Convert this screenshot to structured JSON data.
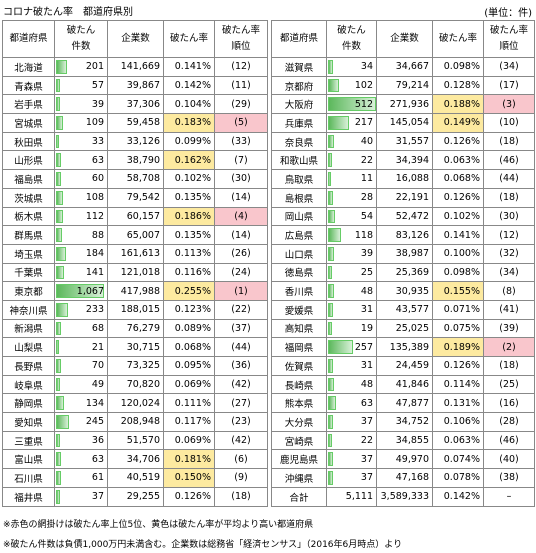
{
  "title": "コロナ破たん率　都道府県別",
  "unit": "(単位：件)",
  "headers": [
    "都道府県",
    "破たん\n件数",
    "企業数",
    "破たん率",
    "破たん率\n順位"
  ],
  "tables": [
    {
      "rows": [
        {
          "pref": "北海道",
          "count": "201",
          "companies": "141,669",
          "rate": "0.141%",
          "rank": "(12)"
        },
        {
          "pref": "青森県",
          "count": "57",
          "companies": "39,867",
          "rate": "0.142%",
          "rank": "(11)"
        },
        {
          "pref": "岩手県",
          "count": "39",
          "companies": "37,306",
          "rate": "0.104%",
          "rank": "(29)"
        },
        {
          "pref": "宮城県",
          "count": "109",
          "companies": "59,458",
          "rate": "0.183%",
          "rank": "(5)",
          "mark": "red"
        },
        {
          "pref": "秋田県",
          "count": "33",
          "companies": "33,126",
          "rate": "0.099%",
          "rank": "(33)"
        },
        {
          "pref": "山形県",
          "count": "63",
          "companies": "38,790",
          "rate": "0.162%",
          "rank": "(7)",
          "mark": "yellow"
        },
        {
          "pref": "福島県",
          "count": "60",
          "companies": "58,708",
          "rate": "0.102%",
          "rank": "(30)"
        },
        {
          "pref": "茨城県",
          "count": "108",
          "companies": "79,542",
          "rate": "0.135%",
          "rank": "(14)"
        },
        {
          "pref": "栃木県",
          "count": "112",
          "companies": "60,157",
          "rate": "0.186%",
          "rank": "(4)",
          "mark": "red"
        },
        {
          "pref": "群馬県",
          "count": "88",
          "companies": "65,007",
          "rate": "0.135%",
          "rank": "(14)"
        },
        {
          "pref": "埼玉県",
          "count": "184",
          "companies": "161,613",
          "rate": "0.113%",
          "rank": "(26)"
        },
        {
          "pref": "千葉県",
          "count": "141",
          "companies": "121,018",
          "rate": "0.116%",
          "rank": "(24)"
        },
        {
          "pref": "東京都",
          "count": "1,067",
          "companies": "417,988",
          "rate": "0.255%",
          "rank": "(1)",
          "mark": "red"
        },
        {
          "pref": "神奈川県",
          "count": "233",
          "companies": "188,015",
          "rate": "0.123%",
          "rank": "(22)"
        },
        {
          "pref": "新潟県",
          "count": "68",
          "companies": "76,279",
          "rate": "0.089%",
          "rank": "(37)"
        },
        {
          "pref": "山梨県",
          "count": "21",
          "companies": "30,715",
          "rate": "0.068%",
          "rank": "(44)"
        },
        {
          "pref": "長野県",
          "count": "70",
          "companies": "73,325",
          "rate": "0.095%",
          "rank": "(36)"
        },
        {
          "pref": "岐阜県",
          "count": "49",
          "companies": "70,820",
          "rate": "0.069%",
          "rank": "(42)"
        },
        {
          "pref": "静岡県",
          "count": "134",
          "companies": "120,024",
          "rate": "0.111%",
          "rank": "(27)"
        },
        {
          "pref": "愛知県",
          "count": "245",
          "companies": "208,948",
          "rate": "0.117%",
          "rank": "(23)"
        },
        {
          "pref": "三重県",
          "count": "36",
          "companies": "51,570",
          "rate": "0.069%",
          "rank": "(42)"
        },
        {
          "pref": "富山県",
          "count": "63",
          "companies": "34,706",
          "rate": "0.181%",
          "rank": "(6)",
          "mark": "yellow"
        },
        {
          "pref": "石川県",
          "count": "61",
          "companies": "40,519",
          "rate": "0.150%",
          "rank": "(9)",
          "mark": "yellow"
        },
        {
          "pref": "福井県",
          "count": "37",
          "companies": "29,255",
          "rate": "0.126%",
          "rank": "(18)"
        }
      ]
    },
    {
      "rows": [
        {
          "pref": "滋賀県",
          "count": "34",
          "companies": "34,667",
          "rate": "0.098%",
          "rank": "(34)"
        },
        {
          "pref": "京都府",
          "count": "102",
          "companies": "79,214",
          "rate": "0.128%",
          "rank": "(17)"
        },
        {
          "pref": "大阪府",
          "count": "512",
          "companies": "271,936",
          "rate": "0.188%",
          "rank": "(3)",
          "mark": "red"
        },
        {
          "pref": "兵庫県",
          "count": "217",
          "companies": "145,054",
          "rate": "0.149%",
          "rank": "(10)",
          "mark": "yellow"
        },
        {
          "pref": "奈良県",
          "count": "40",
          "companies": "31,557",
          "rate": "0.126%",
          "rank": "(18)"
        },
        {
          "pref": "和歌山県",
          "count": "22",
          "companies": "34,394",
          "rate": "0.063%",
          "rank": "(46)"
        },
        {
          "pref": "鳥取県",
          "count": "11",
          "companies": "16,088",
          "rate": "0.068%",
          "rank": "(44)"
        },
        {
          "pref": "島根県",
          "count": "28",
          "companies": "22,191",
          "rate": "0.126%",
          "rank": "(18)"
        },
        {
          "pref": "岡山県",
          "count": "54",
          "companies": "52,472",
          "rate": "0.102%",
          "rank": "(30)"
        },
        {
          "pref": "広島県",
          "count": "118",
          "companies": "83,126",
          "rate": "0.141%",
          "rank": "(12)"
        },
        {
          "pref": "山口県",
          "count": "39",
          "companies": "38,987",
          "rate": "0.100%",
          "rank": "(32)"
        },
        {
          "pref": "徳島県",
          "count": "25",
          "companies": "25,369",
          "rate": "0.098%",
          "rank": "(34)"
        },
        {
          "pref": "香川県",
          "count": "48",
          "companies": "30,935",
          "rate": "0.155%",
          "rank": "(8)",
          "mark": "yellow"
        },
        {
          "pref": "愛媛県",
          "count": "31",
          "companies": "43,577",
          "rate": "0.071%",
          "rank": "(41)"
        },
        {
          "pref": "高知県",
          "count": "19",
          "companies": "25,025",
          "rate": "0.075%",
          "rank": "(39)"
        },
        {
          "pref": "福岡県",
          "count": "257",
          "companies": "135,389",
          "rate": "0.189%",
          "rank": "(2)",
          "mark": "red"
        },
        {
          "pref": "佐賀県",
          "count": "31",
          "companies": "24,459",
          "rate": "0.126%",
          "rank": "(18)"
        },
        {
          "pref": "長崎県",
          "count": "48",
          "companies": "41,846",
          "rate": "0.114%",
          "rank": "(25)"
        },
        {
          "pref": "熊本県",
          "count": "63",
          "companies": "47,877",
          "rate": "0.131%",
          "rank": "(16)"
        },
        {
          "pref": "大分県",
          "count": "37",
          "companies": "34,752",
          "rate": "0.106%",
          "rank": "(28)"
        },
        {
          "pref": "宮崎県",
          "count": "22",
          "companies": "34,855",
          "rate": "0.063%",
          "rank": "(46)"
        },
        {
          "pref": "鹿児島県",
          "count": "37",
          "companies": "49,970",
          "rate": "0.074%",
          "rank": "(40)"
        },
        {
          "pref": "沖縄県",
          "count": "37",
          "companies": "47,168",
          "rate": "0.078%",
          "rank": "(38)"
        }
      ],
      "total": {
        "pref": "合計",
        "count": "5,111",
        "companies": "3,589,333",
        "rate": "0.142%",
        "rank": "–"
      }
    }
  ],
  "notes": [
    "※赤色の網掛けは破たん率上位5位、黄色は破たん率が平均より高い都道府県",
    "※破たん件数は負債1,000万円未満含む。企業数は総務省「経済センサス」（2016年6月時点）より"
  ]
}
